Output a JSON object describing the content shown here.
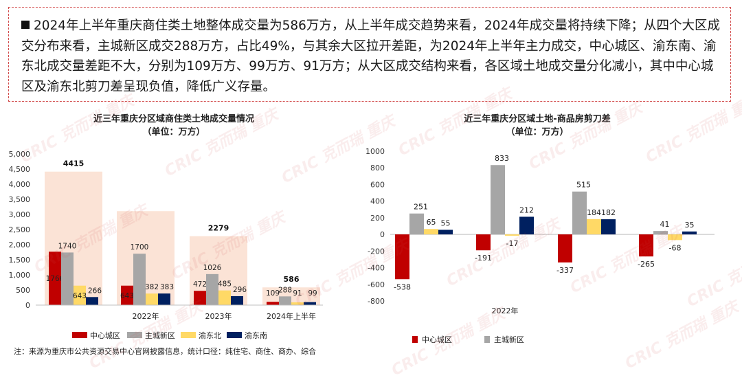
{
  "summary": {
    "text": "2024年上半年重庆商住类土地整体成交量为586万方，从上半年成交趋势来看，2024年成交量将持续下降；从四个大区成交分布来看，主城新区成交288万方，占比49%，与其余大区拉开差距，为2024年上半年主力成交，中心城区、渝东南、渝东北成交量差距不大，分别为109万方、99万方、91万方；从大区成交结构来看，各区域土地成交量分化减小，其中中心城区及渝东北剪刀差呈现负值，降低广义存量。"
  },
  "watermark": "CRIC 克而瑞 重庆",
  "note": "注：来源为重庆市公共资源交易中心官网披露信息，统计口径：纯住宅、商住、商办、综合",
  "colors": {
    "center": "#c00000",
    "newarea": "#a6a6a6",
    "dongbei": "#ffd966",
    "dongnan": "#002060",
    "totalbar": "#fbe3d6",
    "border": "#d24a4a"
  },
  "chart_data": [
    {
      "type": "bar",
      "title": "近三年重庆分区域商住类土地成交量情况",
      "subtitle": "（单位：万方）",
      "categories": [
        "",
        "2022年",
        "2023年",
        "2024年上半年"
      ],
      "totals": [
        4415,
        null,
        2279,
        586
      ],
      "series": [
        {
          "name": "中心城区",
          "values": [
            1766,
            643,
            472,
            109
          ]
        },
        {
          "name": "主城新区",
          "values": [
            1740,
            1700,
            1026,
            288
          ]
        },
        {
          "name": "渝东北",
          "values": [
            643,
            382,
            485,
            91
          ]
        },
        {
          "name": "渝东南",
          "values": [
            266,
            383,
            296,
            99
          ]
        }
      ],
      "ylim": [
        0,
        5000
      ],
      "yticks": [
        "5,000",
        "4,500",
        "4,000",
        "3,500",
        "3,000",
        "2,500",
        "2,000",
        "1,500",
        "1,000",
        "500",
        "0"
      ],
      "legend_position": "bottom"
    },
    {
      "type": "bar",
      "title": "近三年重庆分区域土地-商品房剪刀差",
      "subtitle": "（单位：万方）",
      "categories": [
        "",
        "2022年",
        "",
        ""
      ],
      "series": [
        {
          "name": "中心城区",
          "values": [
            -538,
            -191,
            -337,
            -265
          ]
        },
        {
          "name": "主城新区",
          "values": [
            251,
            833,
            515,
            41
          ]
        },
        {
          "name": "",
          "values": [
            65,
            -17,
            184,
            -68
          ]
        },
        {
          "name": "",
          "values": [
            55,
            212,
            182,
            35
          ]
        }
      ],
      "ylim": [
        -800,
        1000
      ],
      "yticks": [
        "1000",
        "800",
        "600",
        "400",
        "200",
        "0",
        "-200",
        "-400",
        "-600",
        "-800"
      ],
      "legend_position": "bottom"
    }
  ]
}
